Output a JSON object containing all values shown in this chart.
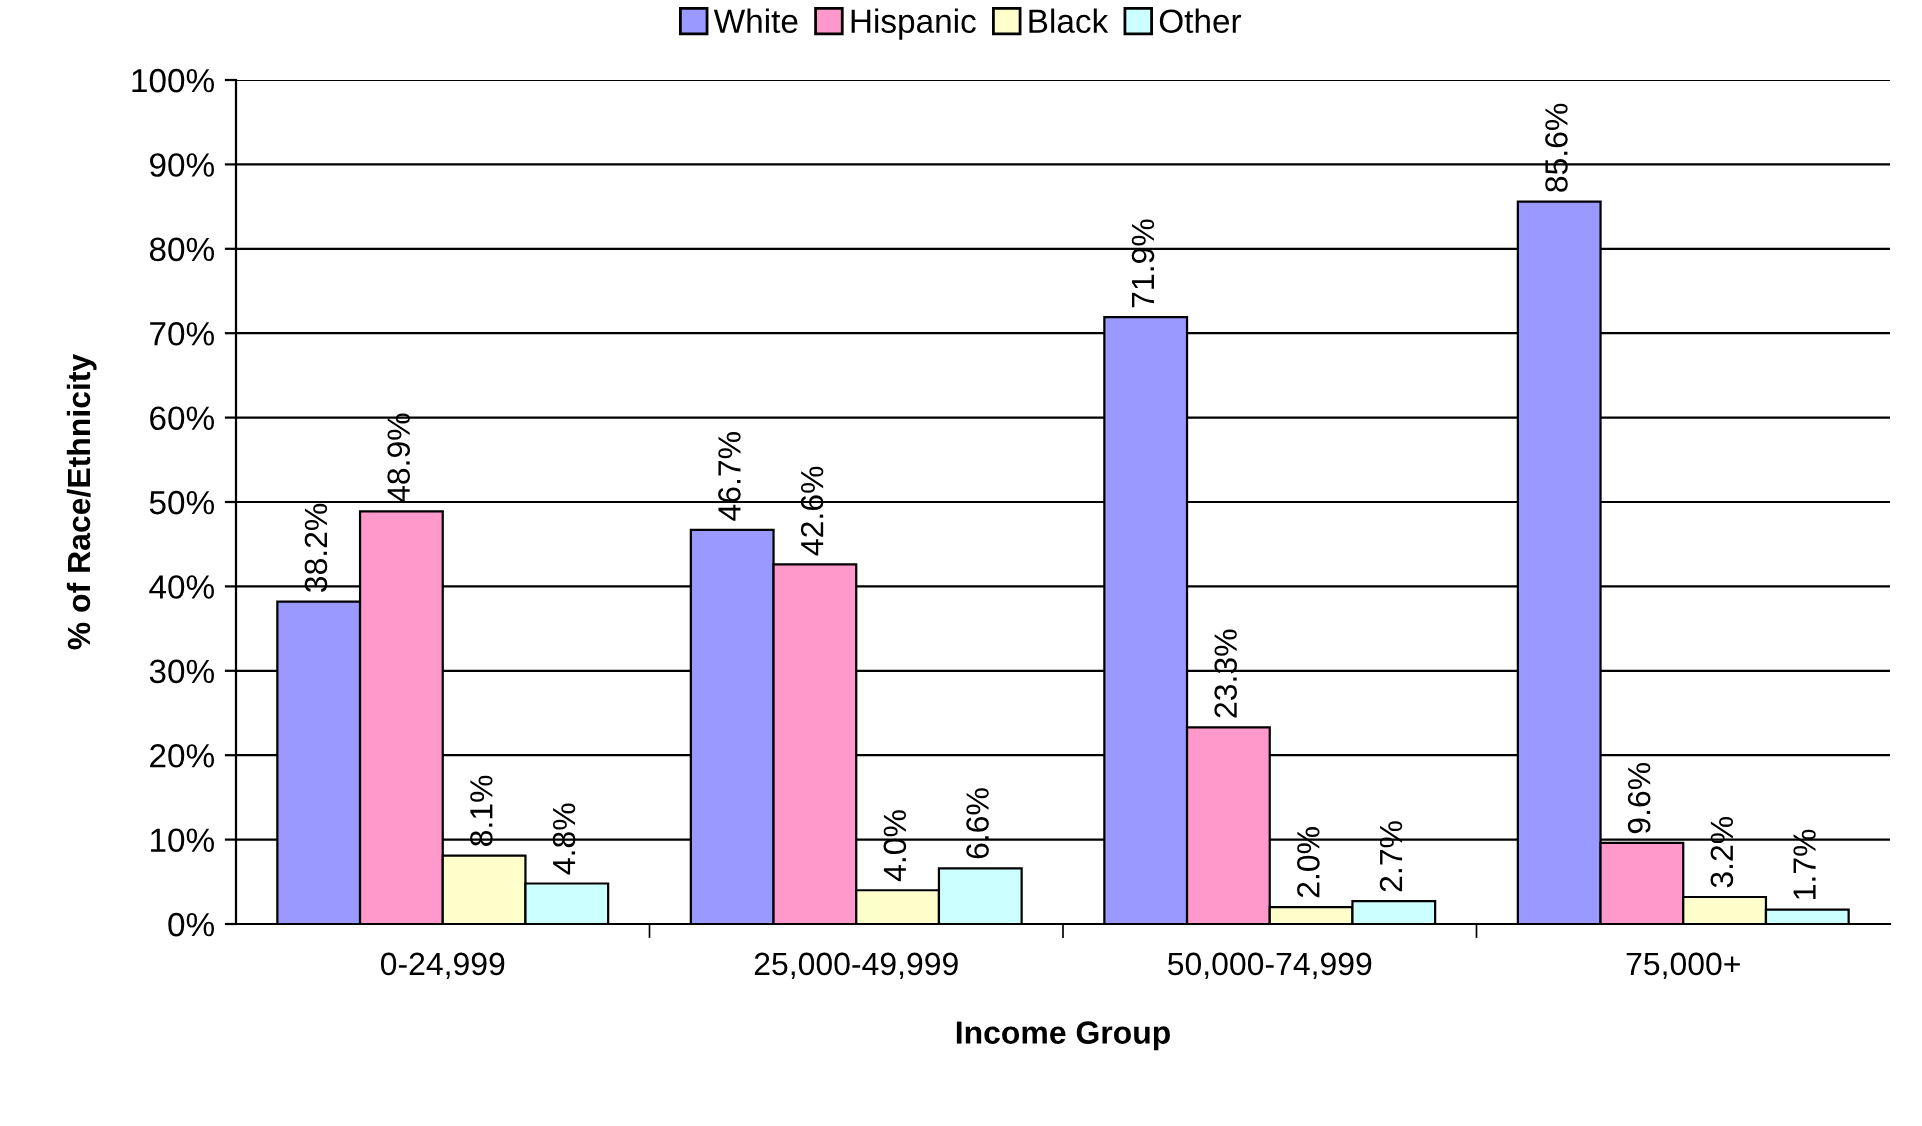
{
  "chart_data": {
    "type": "bar",
    "xlabel": "Income Group",
    "ylabel": "% of Race/Ethnicity",
    "categories": [
      "0-24,999",
      "25,000-49,999",
      "50,000-74,999",
      "75,000+"
    ],
    "series": [
      {
        "name": "White",
        "color": "#9999ff",
        "values": [
          38.2,
          46.7,
          71.9,
          85.6
        ],
        "value_labels": [
          "38.2%",
          "46.7%",
          "71.9%",
          "85.6%"
        ]
      },
      {
        "name": "Hispanic",
        "color": "#ff99cc",
        "values": [
          48.9,
          42.6,
          23.3,
          9.6
        ],
        "value_labels": [
          "48.9%",
          "42.6%",
          "23.3%",
          "9.6%"
        ]
      },
      {
        "name": "Black",
        "color": "#ffffcc",
        "values": [
          8.1,
          4.0,
          2.0,
          3.2
        ],
        "value_labels": [
          "8.1%",
          "4.0%",
          "2.0%",
          "3.2%"
        ]
      },
      {
        "name": "Other",
        "color": "#ccffff",
        "values": [
          4.8,
          6.6,
          2.7,
          1.7
        ],
        "value_labels": [
          "4.8%",
          "6.6%",
          "2.7%",
          "1.7%"
        ]
      }
    ],
    "ylim": [
      0,
      100
    ],
    "yticks": [
      {
        "value": 0,
        "label": "0%"
      },
      {
        "value": 10,
        "label": "10%"
      },
      {
        "value": 20,
        "label": "20%"
      },
      {
        "value": 30,
        "label": "30%"
      },
      {
        "value": 40,
        "label": "40%"
      },
      {
        "value": 50,
        "label": "50%"
      },
      {
        "value": 60,
        "label": "60%"
      },
      {
        "value": 70,
        "label": "70%"
      },
      {
        "value": 80,
        "label": "80%"
      },
      {
        "value": 90,
        "label": "90%"
      },
      {
        "value": 100,
        "label": "100%"
      }
    ],
    "grid": "y",
    "legend": "top"
  }
}
